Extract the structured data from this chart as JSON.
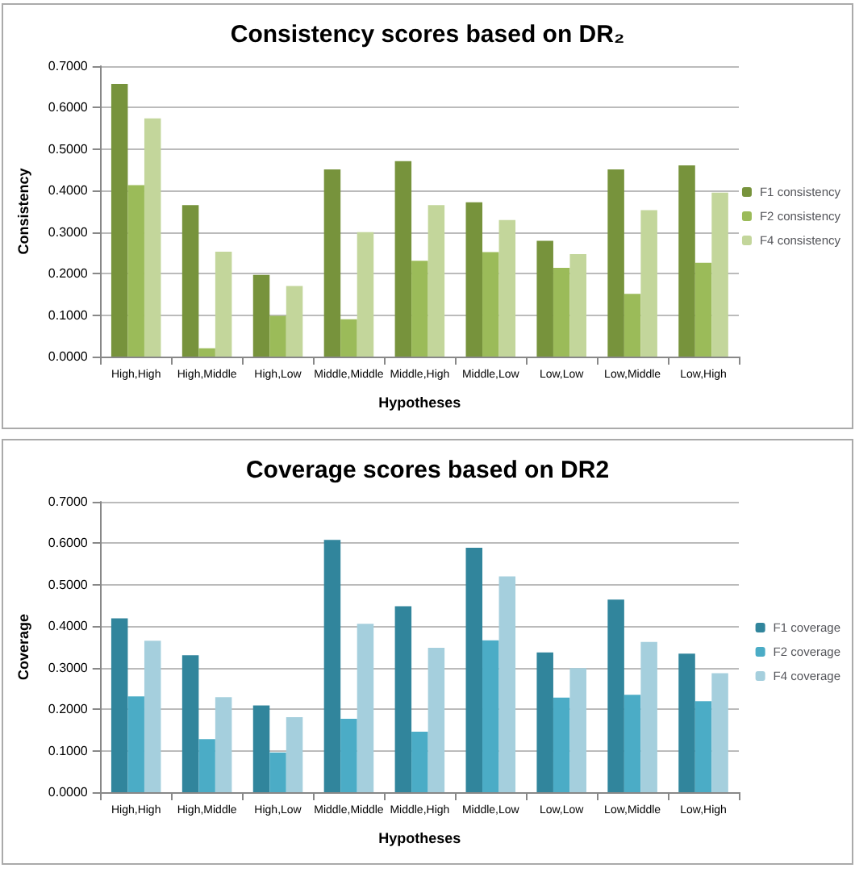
{
  "chart_data": [
    {
      "type": "bar",
      "title": "Consistency scores based on DR₂",
      "xlabel": "Hypotheses",
      "ylabel": "Consistency",
      "categories": [
        "High,High",
        "High,Middle",
        "High,Low",
        "Middle,Middle",
        "Middle,High",
        "Middle,Low",
        "Low,Low",
        "Low,Middle",
        "Low,High"
      ],
      "series": [
        {
          "name": "F1 consistency",
          "color": "#77933c",
          "values": [
            0.657,
            0.365,
            0.197,
            0.451,
            0.471,
            0.372,
            0.279,
            0.451,
            0.461
          ]
        },
        {
          "name": "F2 consistency",
          "color": "#9bbb59",
          "values": [
            0.413,
            0.02,
            0.098,
            0.09,
            0.231,
            0.252,
            0.214,
            0.151,
            0.226
          ]
        },
        {
          "name": "F4 consistency",
          "color": "#c3d69b",
          "values": [
            0.574,
            0.253,
            0.17,
            0.3,
            0.365,
            0.329,
            0.247,
            0.353,
            0.395
          ]
        }
      ],
      "ylim": [
        0,
        0.7
      ],
      "yticks": [
        {
          "value": 0,
          "label": "0.0000"
        },
        {
          "value": 0.1,
          "label": "0.1000"
        },
        {
          "value": 0.2,
          "label": "0.2000"
        },
        {
          "value": 0.3,
          "label": "0.3000"
        },
        {
          "value": 0.4,
          "label": "0.4000"
        },
        {
          "value": 0.5,
          "label": "0.5000"
        },
        {
          "value": 0.6,
          "label": "0.6000"
        },
        {
          "value": 0.7,
          "label": "0.7000"
        }
      ],
      "grid": "y",
      "legend": "right"
    },
    {
      "type": "bar",
      "title": "Coverage scores based on DR2",
      "xlabel": "Hypotheses",
      "ylabel": "Coverage",
      "categories": [
        "High,High",
        "High,Middle",
        "High,Low",
        "Middle,Middle",
        "Middle,High",
        "Middle,Low",
        "Low,Low",
        "Low,Middle",
        "Low,High"
      ],
      "series": [
        {
          "name": "F1 coverage",
          "color": "#31859c",
          "values": [
            0.419,
            0.33,
            0.209,
            0.608,
            0.448,
            0.589,
            0.337,
            0.464,
            0.334
          ]
        },
        {
          "name": "F2 coverage",
          "color": "#4bacc6",
          "values": [
            0.231,
            0.128,
            0.096,
            0.177,
            0.146,
            0.366,
            0.228,
            0.235,
            0.219
          ]
        },
        {
          "name": "F4 coverage",
          "color": "#a5cfdd",
          "values": [
            0.365,
            0.229,
            0.181,
            0.406,
            0.348,
            0.52,
            0.299,
            0.362,
            0.287
          ]
        }
      ],
      "ylim": [
        0,
        0.7
      ],
      "yticks": [
        {
          "value": 0,
          "label": "0.0000"
        },
        {
          "value": 0.1,
          "label": "0.1000"
        },
        {
          "value": 0.2,
          "label": "0.2000"
        },
        {
          "value": 0.3,
          "label": "0.3000"
        },
        {
          "value": 0.4,
          "label": "0.4000"
        },
        {
          "value": 0.5,
          "label": "0.5000"
        },
        {
          "value": 0.6,
          "label": "0.6000"
        },
        {
          "value": 0.7,
          "label": "0.7000"
        }
      ],
      "grid": "y",
      "legend": "right"
    }
  ]
}
